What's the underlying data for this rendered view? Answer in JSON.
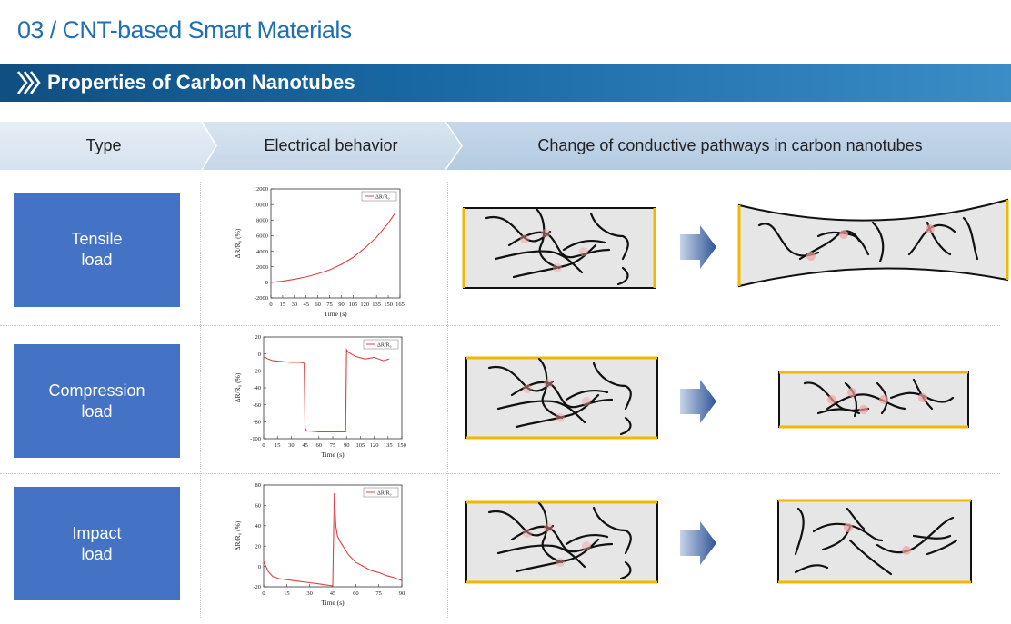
{
  "page_title": "03 / CNT-based Smart Materials",
  "section_title": "Properties of Carbon Nanotubes",
  "header": {
    "col_type": "Type",
    "col_electrical": "Electrical behavior",
    "col_pathways": "Change of conductive pathways in carbon nanotubes"
  },
  "rows": [
    {
      "label": "Tensile\nload"
    },
    {
      "label": "Compression\nload"
    },
    {
      "label": "Impact\nload"
    }
  ],
  "colors": {
    "title_blue": "#1e6fb3",
    "load_box": "#4472c4",
    "electrode": "#f2b700",
    "curve": "#e04040",
    "arrow": "#2e5597"
  },
  "chart_data": [
    {
      "type": "line",
      "legend": "ΔR/R₀",
      "ylabel": "ΔR/R₀ (%)",
      "xlabel": "Time (s)",
      "xlim": [
        0,
        165
      ],
      "ylim": [
        -2000,
        12000
      ],
      "xticks": [
        "0",
        "15",
        "30",
        "45",
        "60",
        "75",
        "90",
        "105",
        "120",
        "135",
        "150",
        "165"
      ],
      "yticks": [
        "-2000",
        "0",
        "2000",
        "4000",
        "6000",
        "8000",
        "10000",
        "12000"
      ],
      "series": [
        {
          "x": [
            0,
            15,
            30,
            45,
            60,
            75,
            90,
            105,
            120,
            135,
            150,
            158
          ],
          "y": [
            0,
            150,
            400,
            700,
            1100,
            1600,
            2300,
            3200,
            4400,
            5800,
            7600,
            8800
          ]
        }
      ]
    },
    {
      "type": "line",
      "legend": "ΔR/R₀",
      "ylabel": "ΔR/R₀ (%)",
      "xlabel": "Time (s)",
      "xlim": [
        0,
        150
      ],
      "ylim": [
        -100,
        20
      ],
      "xticks": [
        "0",
        "15",
        "30",
        "45",
        "60",
        "75",
        "90",
        "105",
        "120",
        "135",
        "150"
      ],
      "yticks": [
        "-100",
        "-80",
        "-60",
        "-40",
        "-20",
        "0",
        "20"
      ],
      "series": [
        {
          "x": [
            0,
            5,
            10,
            20,
            30,
            40,
            44,
            45,
            47,
            50,
            60,
            70,
            80,
            88,
            89,
            90,
            92,
            95,
            100,
            110,
            120,
            130,
            136
          ],
          "y": [
            -3,
            -6,
            -8,
            -9,
            -10,
            -10,
            -11,
            -88,
            -91,
            -91,
            -92,
            -92,
            -92,
            -92,
            -92,
            5,
            2,
            0,
            -3,
            -6,
            -4,
            -8,
            -6
          ]
        }
      ]
    },
    {
      "type": "line",
      "legend": "ΔR/R₀",
      "ylabel": "ΔR/R₀ (%)",
      "xlabel": "Time (s)",
      "xlim": [
        0,
        90
      ],
      "ylim": [
        -20,
        80
      ],
      "xticks": [
        "0",
        "15",
        "30",
        "45",
        "60",
        "75",
        "90"
      ],
      "yticks": [
        "-20",
        "0",
        "20",
        "40",
        "60",
        "80"
      ],
      "series": [
        {
          "x": [
            0,
            3,
            6,
            10,
            15,
            20,
            25,
            30,
            35,
            40,
            45,
            46,
            47,
            48,
            50,
            55,
            60,
            65,
            70,
            75,
            80,
            85,
            90
          ],
          "y": [
            5,
            -5,
            -10,
            -12,
            -13,
            -14,
            -15,
            -16,
            -17,
            -18,
            -19,
            72,
            40,
            30,
            24,
            12,
            4,
            0,
            -4,
            -6,
            -9,
            -11,
            -14
          ]
        }
      ]
    }
  ]
}
